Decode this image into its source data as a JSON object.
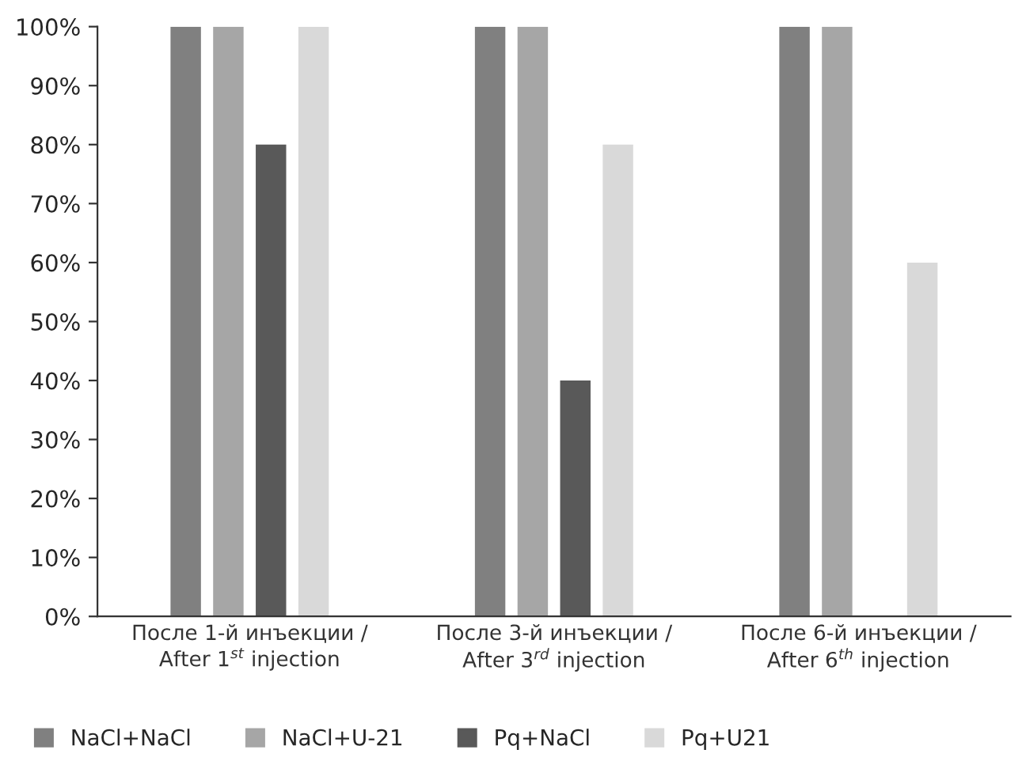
{
  "chart_data": {
    "type": "bar",
    "categories": [
      "После 1-й инъекции /\nAfter 1$^{st}$ injection",
      "После 3-й инъекции /\nAfter 3$^{rd}$ injection",
      "После 6-й инъекции /\nAfter 6$^{th}$ injection"
    ],
    "series": [
      {
        "name": "NaCl+NaCl",
        "color": "#808080",
        "values": [
          100,
          100,
          100
        ]
      },
      {
        "name": "NaCl+U-21",
        "color": "#a6a6a6",
        "values": [
          100,
          100,
          100
        ]
      },
      {
        "name": "Pq+NaCl",
        "color": "#595959",
        "values": [
          80,
          40,
          0
        ]
      },
      {
        "name": "Pq+U21",
        "color": "#d9d9d9",
        "values": [
          100,
          80,
          60
        ]
      }
    ],
    "ylim": [
      0,
      100
    ],
    "yticks": [
      {
        "value": 0,
        "label": "0%"
      },
      {
        "value": 10,
        "label": "10%"
      },
      {
        "value": 20,
        "label": "20%"
      },
      {
        "value": 30,
        "label": "30%"
      },
      {
        "value": 40,
        "label": "40%"
      },
      {
        "value": 50,
        "label": "50%"
      },
      {
        "value": 60,
        "label": "60%"
      },
      {
        "value": 70,
        "label": "70%"
      },
      {
        "value": 80,
        "label": "80%"
      },
      {
        "value": 90,
        "label": "90%"
      },
      {
        "value": 100,
        "label": "100%"
      }
    ],
    "grid": false,
    "legend": "bottom"
  }
}
